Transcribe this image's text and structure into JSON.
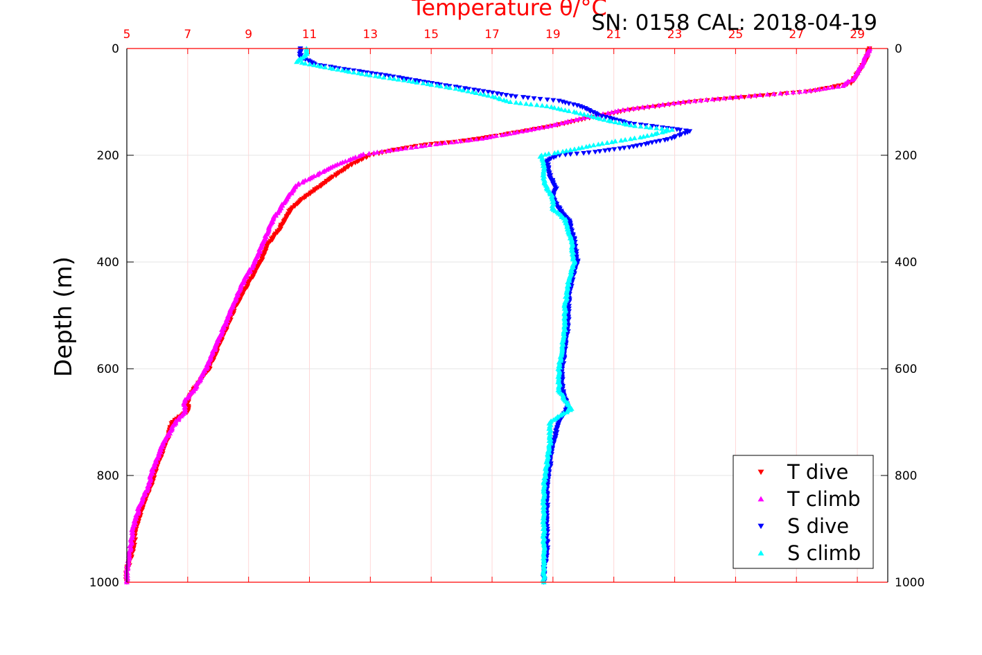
{
  "header": {
    "info": "SN: 0158  CAL: 2018-04-19"
  },
  "chart_data": {
    "type": "scatter",
    "title": "Temperature θ/°C",
    "ylabel": "Depth (m)",
    "xlabel": "",
    "xlim": [
      5,
      30
    ],
    "ylim": [
      0,
      1000
    ],
    "y_reversed": true,
    "x_ticks": [
      5,
      7,
      9,
      11,
      13,
      15,
      17,
      19,
      21,
      23,
      25,
      27,
      29
    ],
    "y_ticks": [
      0,
      200,
      400,
      600,
      800,
      1000
    ],
    "grid": true,
    "legend_position": "bottom-right",
    "colors": {
      "axis": "#ff0000",
      "t_dive": "#ff0000",
      "t_climb": "#ff00ff",
      "s_dive": "#0000ff",
      "s_climb": "#00ffff"
    },
    "series": [
      {
        "name": "T dive",
        "marker": "triangle-down",
        "color": "#ff0000",
        "points": [
          [
            29.4,
            0
          ],
          [
            29.3,
            20
          ],
          [
            29.1,
            40
          ],
          [
            28.8,
            65
          ],
          [
            27.5,
            80
          ],
          [
            25.5,
            90
          ],
          [
            23.5,
            100
          ],
          [
            21.5,
            115
          ],
          [
            20.2,
            130
          ],
          [
            19.0,
            145
          ],
          [
            18.0,
            155
          ],
          [
            17.0,
            165
          ],
          [
            15.8,
            175
          ],
          [
            14.8,
            180
          ],
          [
            13.8,
            190
          ],
          [
            13.0,
            200
          ],
          [
            12.3,
            220
          ],
          [
            11.8,
            240
          ],
          [
            11.3,
            260
          ],
          [
            10.8,
            280
          ],
          [
            10.4,
            300
          ],
          [
            10.0,
            340
          ],
          [
            9.6,
            370
          ],
          [
            9.4,
            400
          ],
          [
            9.0,
            440
          ],
          [
            8.6,
            480
          ],
          [
            8.3,
            520
          ],
          [
            8.0,
            560
          ],
          [
            7.7,
            600
          ],
          [
            7.2,
            640
          ],
          [
            7.0,
            660
          ],
          [
            7.0,
            680
          ],
          [
            6.5,
            700
          ],
          [
            6.3,
            740
          ],
          [
            6.0,
            780
          ],
          [
            5.8,
            820
          ],
          [
            5.5,
            860
          ],
          [
            5.3,
            900
          ],
          [
            5.2,
            940
          ],
          [
            5.0,
            980
          ],
          [
            5.0,
            1000
          ]
        ]
      },
      {
        "name": "T climb",
        "marker": "triangle-up",
        "color": "#ff00ff",
        "points": [
          [
            29.4,
            0
          ],
          [
            29.2,
            25
          ],
          [
            28.9,
            55
          ],
          [
            28.5,
            70
          ],
          [
            27.3,
            80
          ],
          [
            25.2,
            90
          ],
          [
            23.3,
            100
          ],
          [
            21.3,
            115
          ],
          [
            20.0,
            130
          ],
          [
            18.9,
            145
          ],
          [
            17.7,
            158
          ],
          [
            16.5,
            170
          ],
          [
            15.3,
            178
          ],
          [
            14.0,
            188
          ],
          [
            12.8,
            198
          ],
          [
            12.0,
            215
          ],
          [
            11.3,
            235
          ],
          [
            10.6,
            255
          ],
          [
            10.2,
            285
          ],
          [
            9.8,
            320
          ],
          [
            9.5,
            360
          ],
          [
            9.2,
            400
          ],
          [
            8.8,
            440
          ],
          [
            8.5,
            480
          ],
          [
            8.2,
            520
          ],
          [
            7.9,
            560
          ],
          [
            7.6,
            600
          ],
          [
            7.2,
            640
          ],
          [
            6.9,
            660
          ],
          [
            6.9,
            680
          ],
          [
            6.6,
            700
          ],
          [
            6.2,
            740
          ],
          [
            5.9,
            780
          ],
          [
            5.7,
            820
          ],
          [
            5.4,
            860
          ],
          [
            5.2,
            900
          ],
          [
            5.1,
            940
          ],
          [
            5.0,
            980
          ],
          [
            5.0,
            1000
          ]
        ]
      },
      {
        "name": "S dive",
        "marker": "triangle-down",
        "color": "#0000ff",
        "points": [
          [
            10.7,
            0
          ],
          [
            10.7,
            15
          ],
          [
            11.2,
            30
          ],
          [
            12.3,
            40
          ],
          [
            13.5,
            50
          ],
          [
            15.0,
            65
          ],
          [
            16.7,
            80
          ],
          [
            17.8,
            90
          ],
          [
            19.2,
            98
          ],
          [
            20.0,
            110
          ],
          [
            20.5,
            125
          ],
          [
            21.5,
            140
          ],
          [
            22.6,
            148
          ],
          [
            23.5,
            155
          ],
          [
            22.8,
            170
          ],
          [
            21.5,
            185
          ],
          [
            20.2,
            195
          ],
          [
            19.2,
            200
          ],
          [
            18.8,
            210
          ],
          [
            18.9,
            240
          ],
          [
            19.1,
            260
          ],
          [
            19.0,
            280
          ],
          [
            19.2,
            300
          ],
          [
            19.5,
            320
          ],
          [
            19.7,
            360
          ],
          [
            19.8,
            400
          ],
          [
            19.6,
            440
          ],
          [
            19.5,
            480
          ],
          [
            19.5,
            520
          ],
          [
            19.4,
            560
          ],
          [
            19.3,
            600
          ],
          [
            19.3,
            640
          ],
          [
            19.5,
            670
          ],
          [
            19.2,
            700
          ],
          [
            19.0,
            740
          ],
          [
            18.9,
            780
          ],
          [
            18.8,
            820
          ],
          [
            18.8,
            860
          ],
          [
            18.8,
            900
          ],
          [
            18.8,
            940
          ],
          [
            18.7,
            980
          ],
          [
            18.7,
            1000
          ]
        ]
      },
      {
        "name": "S climb",
        "marker": "triangle-up",
        "color": "#00ffff",
        "points": [
          [
            10.9,
            0
          ],
          [
            10.9,
            10
          ],
          [
            10.6,
            25
          ],
          [
            11.8,
            38
          ],
          [
            13.0,
            50
          ],
          [
            14.4,
            62
          ],
          [
            15.8,
            75
          ],
          [
            16.9,
            88
          ],
          [
            17.6,
            100
          ],
          [
            18.8,
            108
          ],
          [
            19.8,
            120
          ],
          [
            20.8,
            135
          ],
          [
            21.7,
            145
          ],
          [
            22.9,
            152
          ],
          [
            22.0,
            165
          ],
          [
            20.6,
            178
          ],
          [
            19.6,
            190
          ],
          [
            18.6,
            200
          ],
          [
            18.7,
            220
          ],
          [
            18.7,
            250
          ],
          [
            19.0,
            280
          ],
          [
            19.0,
            300
          ],
          [
            19.4,
            320
          ],
          [
            19.6,
            360
          ],
          [
            19.7,
            400
          ],
          [
            19.5,
            440
          ],
          [
            19.4,
            480
          ],
          [
            19.4,
            520
          ],
          [
            19.3,
            560
          ],
          [
            19.2,
            600
          ],
          [
            19.2,
            640
          ],
          [
            19.6,
            675
          ],
          [
            18.9,
            700
          ],
          [
            18.9,
            740
          ],
          [
            18.8,
            780
          ],
          [
            18.7,
            820
          ],
          [
            18.7,
            860
          ],
          [
            18.7,
            900
          ],
          [
            18.7,
            940
          ],
          [
            18.7,
            980
          ],
          [
            18.7,
            1000
          ]
        ]
      }
    ]
  }
}
